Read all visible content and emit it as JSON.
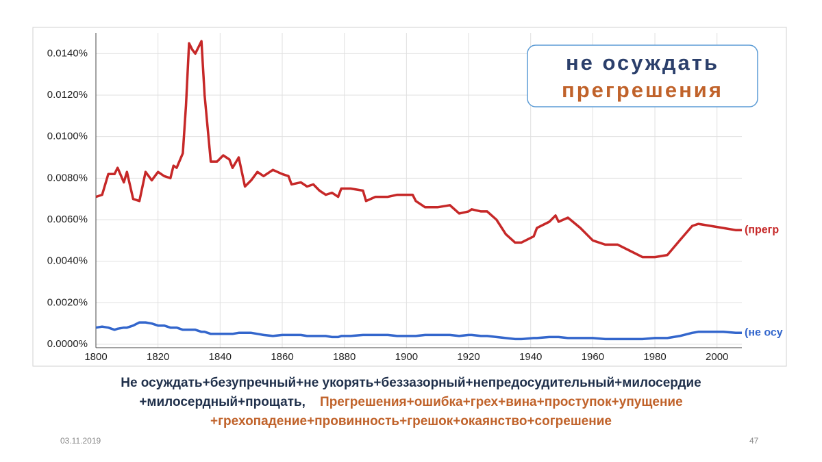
{
  "chart_data": {
    "type": "line",
    "x": [
      1800,
      1802,
      1804,
      1806,
      1807,
      1809,
      1810,
      1812,
      1814,
      1816,
      1818,
      1820,
      1822,
      1824,
      1825,
      1826,
      1828,
      1829,
      1830,
      1831,
      1832,
      1834,
      1835,
      1837,
      1839,
      1841,
      1843,
      1844,
      1846,
      1848,
      1850,
      1852,
      1854,
      1857,
      1860,
      1862,
      1863,
      1866,
      1868,
      1870,
      1872,
      1874,
      1876,
      1878,
      1879,
      1882,
      1886,
      1887,
      1890,
      1894,
      1897,
      1900,
      1902,
      1903,
      1906,
      1910,
      1914,
      1917,
      1920,
      1921,
      1924,
      1926,
      1929,
      1932,
      1935,
      1937,
      1941,
      1942,
      1946,
      1948,
      1949,
      1952,
      1956,
      1960,
      1964,
      1968,
      1972,
      1976,
      1980,
      1984,
      1988,
      1992,
      1994,
      1998,
      2002,
      2006,
      2008
    ],
    "series": [
      {
        "name": "(прегр",
        "color": "#c62828",
        "values": [
          0.0071,
          0.0072,
          0.0082,
          0.0082,
          0.0085,
          0.0078,
          0.0083,
          0.007,
          0.0069,
          0.0083,
          0.0079,
          0.0083,
          0.0081,
          0.008,
          0.0086,
          0.0085,
          0.0092,
          0.0115,
          0.0145,
          0.0142,
          0.014,
          0.0146,
          0.012,
          0.0088,
          0.0088,
          0.0091,
          0.0089,
          0.0085,
          0.009,
          0.0076,
          0.0079,
          0.0083,
          0.0081,
          0.0084,
          0.0082,
          0.0081,
          0.0077,
          0.0078,
          0.0076,
          0.0077,
          0.0074,
          0.0072,
          0.0073,
          0.0071,
          0.0075,
          0.0075,
          0.0074,
          0.0069,
          0.0071,
          0.0071,
          0.0072,
          0.0072,
          0.0072,
          0.0069,
          0.0066,
          0.0066,
          0.0067,
          0.0063,
          0.0064,
          0.0065,
          0.0064,
          0.0064,
          0.006,
          0.0053,
          0.0049,
          0.0049,
          0.0052,
          0.0056,
          0.0059,
          0.0062,
          0.0059,
          0.0061,
          0.0056,
          0.005,
          0.0048,
          0.0048,
          0.0045,
          0.0042,
          0.0042,
          0.0043,
          0.005,
          0.0057,
          0.0058,
          0.0057,
          0.0056,
          0.0055,
          0.0055
        ]
      },
      {
        "name": "(не осу",
        "color": "#3366cc",
        "values": [
          0.0008,
          0.00085,
          0.0008,
          0.0007,
          0.00075,
          0.0008,
          0.0008,
          0.0009,
          0.00105,
          0.00105,
          0.001,
          0.0009,
          0.0009,
          0.0008,
          0.0008,
          0.0008,
          0.0007,
          0.0007,
          0.0007,
          0.0007,
          0.0007,
          0.0006,
          0.0006,
          0.0005,
          0.0005,
          0.0005,
          0.0005,
          0.0005,
          0.00055,
          0.00055,
          0.00055,
          0.0005,
          0.00045,
          0.0004,
          0.00045,
          0.00045,
          0.00045,
          0.00045,
          0.0004,
          0.0004,
          0.0004,
          0.0004,
          0.00035,
          0.00035,
          0.0004,
          0.0004,
          0.00045,
          0.00045,
          0.00045,
          0.00045,
          0.0004,
          0.0004,
          0.0004,
          0.0004,
          0.00045,
          0.00045,
          0.00045,
          0.0004,
          0.00045,
          0.00045,
          0.0004,
          0.0004,
          0.00035,
          0.0003,
          0.00025,
          0.00025,
          0.0003,
          0.0003,
          0.00035,
          0.00035,
          0.00035,
          0.0003,
          0.0003,
          0.0003,
          0.00025,
          0.00025,
          0.00025,
          0.00025,
          0.0003,
          0.0003,
          0.0004,
          0.00055,
          0.0006,
          0.0006,
          0.0006,
          0.00055,
          0.00055
        ]
      }
    ],
    "xlim": [
      1800,
      2008
    ],
    "xticks": [
      1800,
      1820,
      1840,
      1860,
      1880,
      1900,
      1920,
      1940,
      1960,
      1980,
      2000
    ],
    "ylim": [
      0,
      0.015
    ],
    "yticks": [
      {
        "value": 0,
        "label": "0.0000%"
      },
      {
        "value": 0.002,
        "label": "0.0020%"
      },
      {
        "value": 0.004,
        "label": "0.0040%"
      },
      {
        "value": 0.006,
        "label": "0.0060%"
      },
      {
        "value": 0.008,
        "label": "0.0080%"
      },
      {
        "value": 0.01,
        "label": "0.0100%"
      },
      {
        "value": 0.012,
        "label": "0.0120%"
      },
      {
        "value": 0.014,
        "label": "0.0140%"
      }
    ],
    "grid": true,
    "annotations": [
      "не осуждать",
      "прегрешения"
    ]
  },
  "slide": {
    "caption_dark": [
      "Не осуждать+безупречный+не укорять+беззазорный+непредосудительный+милосердие",
      "+милосердный+прощать,"
    ],
    "caption_orange": [
      "Прегрешения+ошибка+грех+вина+проступок+упущение",
      "+грехопадение+провинность+грешок+окаянство+согрешение"
    ],
    "date": "03.11.2019",
    "page": "47"
  }
}
